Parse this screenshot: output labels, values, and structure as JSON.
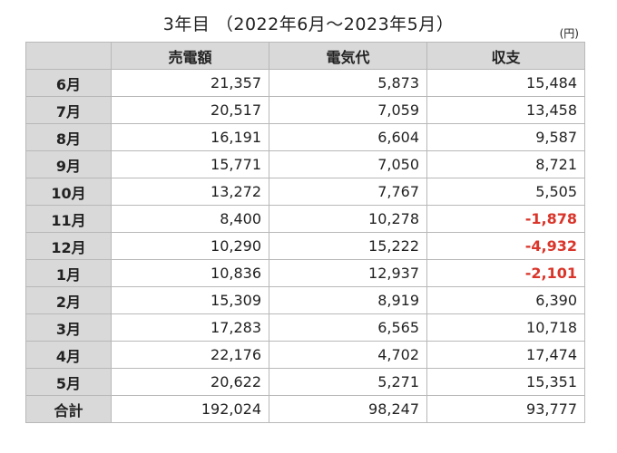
{
  "title": "3年目 （2022年6月～2023年5月）",
  "unit": "(円)",
  "headers": [
    "",
    "売電額",
    "電気代",
    "収支"
  ],
  "rows": [
    {
      "month": "6月",
      "sales": "21,357",
      "electricity": "5,873",
      "balance": "15,484",
      "negative": false
    },
    {
      "month": "7月",
      "sales": "20,517",
      "electricity": "7,059",
      "balance": "13,458",
      "negative": false
    },
    {
      "month": "8月",
      "sales": "16,191",
      "electricity": "6,604",
      "balance": "9,587",
      "negative": false
    },
    {
      "month": "9月",
      "sales": "15,771",
      "electricity": "7,050",
      "balance": "8,721",
      "negative": false
    },
    {
      "month": "10月",
      "sales": "13,272",
      "electricity": "7,767",
      "balance": "5,505",
      "negative": false
    },
    {
      "month": "11月",
      "sales": "8,400",
      "electricity": "10,278",
      "balance": "-1,878",
      "negative": true
    },
    {
      "month": "12月",
      "sales": "10,290",
      "electricity": "15,222",
      "balance": "-4,932",
      "negative": true
    },
    {
      "month": "1月",
      "sales": "10,836",
      "electricity": "12,937",
      "balance": "-2,101",
      "negative": true
    },
    {
      "month": "2月",
      "sales": "15,309",
      "electricity": "8,919",
      "balance": "6,390",
      "negative": false
    },
    {
      "month": "3月",
      "sales": "17,283",
      "electricity": "6,565",
      "balance": "10,718",
      "negative": false
    },
    {
      "month": "4月",
      "sales": "22,176",
      "electricity": "4,702",
      "balance": "17,474",
      "negative": false
    },
    {
      "month": "5月",
      "sales": "20,622",
      "electricity": "5,271",
      "balance": "15,351",
      "negative": false
    }
  ],
  "total": {
    "label": "合計",
    "sales": "192,024",
    "electricity": "98,247",
    "balance": "93,777"
  },
  "colors": {
    "header_bg": "#d9d9d9",
    "negative": "#d9352a",
    "border": "#b8b8b8"
  }
}
